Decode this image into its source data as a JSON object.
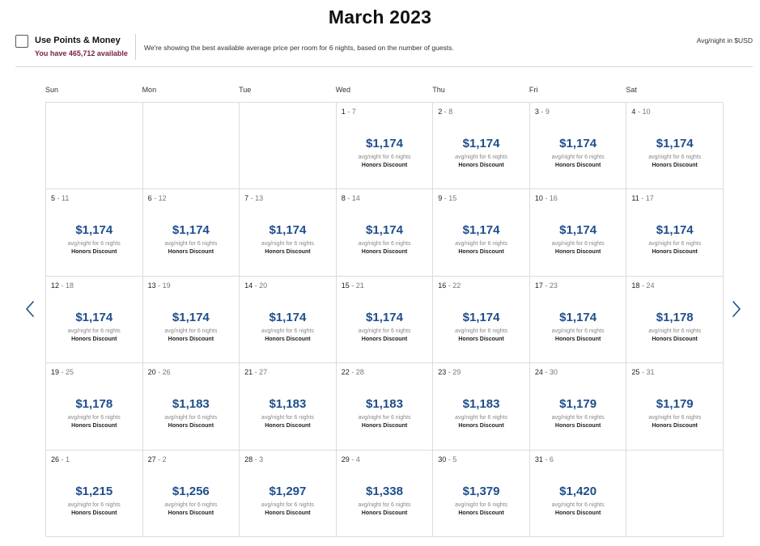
{
  "title": "March 2023",
  "points": {
    "label": "Use Points & Money",
    "available": "You have 465,712 available"
  },
  "info_text": "We're showing the best available average price per room for 6 nights, based on the number of guests.",
  "currency_note": "Avg/night in $USD",
  "days_of_week": [
    "Sun",
    "Mon",
    "Tue",
    "Wed",
    "Thu",
    "Fri",
    "Sat"
  ],
  "cells": [
    {
      "start": "",
      "sep": "",
      "end": "",
      "price": "",
      "sub": "",
      "discount": ""
    },
    {
      "start": "",
      "sep": "",
      "end": "",
      "price": "",
      "sub": "",
      "discount": ""
    },
    {
      "start": "",
      "sep": "",
      "end": "",
      "price": "",
      "sub": "",
      "discount": ""
    },
    {
      "start": "1",
      "sep": " - ",
      "end": "7",
      "price": "$1,174",
      "sub": "avg/night for 6 nights",
      "discount": "Honors Discount"
    },
    {
      "start": "2",
      "sep": " - ",
      "end": "8",
      "price": "$1,174",
      "sub": "avg/night for 6 nights",
      "discount": "Honors Discount"
    },
    {
      "start": "3",
      "sep": " - ",
      "end": "9",
      "price": "$1,174",
      "sub": "avg/night for 6 nights",
      "discount": "Honors Discount"
    },
    {
      "start": "4",
      "sep": " - ",
      "end": "10",
      "price": "$1,174",
      "sub": "avg/night for 6 nights",
      "discount": "Honors Discount"
    },
    {
      "start": "5",
      "sep": " - ",
      "end": "11",
      "price": "$1,174",
      "sub": "avg/night for 6 nights",
      "discount": "Honors Discount"
    },
    {
      "start": "6",
      "sep": " - ",
      "end": "12",
      "price": "$1,174",
      "sub": "avg/night for 6 nights",
      "discount": "Honors Discount"
    },
    {
      "start": "7",
      "sep": " - ",
      "end": "13",
      "price": "$1,174",
      "sub": "avg/night for 6 nights",
      "discount": "Honors Discount"
    },
    {
      "start": "8",
      "sep": " - ",
      "end": "14",
      "price": "$1,174",
      "sub": "avg/night for 6 nights",
      "discount": "Honors Discount"
    },
    {
      "start": "9",
      "sep": " - ",
      "end": "15",
      "price": "$1,174",
      "sub": "avg/night for 6 nights",
      "discount": "Honors Discount"
    },
    {
      "start": "10",
      "sep": " - ",
      "end": "16",
      "price": "$1,174",
      "sub": "avg/night for 6 nights",
      "discount": "Honors Discount"
    },
    {
      "start": "11",
      "sep": " - ",
      "end": "17",
      "price": "$1,174",
      "sub": "avg/night for 6 nights",
      "discount": "Honors Discount"
    },
    {
      "start": "12",
      "sep": " - ",
      "end": "18",
      "price": "$1,174",
      "sub": "avg/night for 6 nights",
      "discount": "Honors Discount"
    },
    {
      "start": "13",
      "sep": " - ",
      "end": "19",
      "price": "$1,174",
      "sub": "avg/night for 6 nights",
      "discount": "Honors Discount"
    },
    {
      "start": "14",
      "sep": " - ",
      "end": "20",
      "price": "$1,174",
      "sub": "avg/night for 6 nights",
      "discount": "Honors Discount"
    },
    {
      "start": "15",
      "sep": " - ",
      "end": "21",
      "price": "$1,174",
      "sub": "avg/night for 6 nights",
      "discount": "Honors Discount"
    },
    {
      "start": "16",
      "sep": " - ",
      "end": "22",
      "price": "$1,174",
      "sub": "avg/night for 6 nights",
      "discount": "Honors Discount"
    },
    {
      "start": "17",
      "sep": " - ",
      "end": "23",
      "price": "$1,174",
      "sub": "avg/night for 6 nights",
      "discount": "Honors Discount"
    },
    {
      "start": "18",
      "sep": " - ",
      "end": "24",
      "price": "$1,178",
      "sub": "avg/night for 6 nights",
      "discount": "Honors Discount"
    },
    {
      "start": "19",
      "sep": " - ",
      "end": "25",
      "price": "$1,178",
      "sub": "avg/night for 6 nights",
      "discount": "Honors Discount"
    },
    {
      "start": "20",
      "sep": " - ",
      "end": "26",
      "price": "$1,183",
      "sub": "avg/night for 6 nights",
      "discount": "Honors Discount"
    },
    {
      "start": "21",
      "sep": " - ",
      "end": "27",
      "price": "$1,183",
      "sub": "avg/night for 6 nights",
      "discount": "Honors Discount"
    },
    {
      "start": "22",
      "sep": " - ",
      "end": "28",
      "price": "$1,183",
      "sub": "avg/night for 6 nights",
      "discount": "Honors Discount"
    },
    {
      "start": "23",
      "sep": " - ",
      "end": "29",
      "price": "$1,183",
      "sub": "avg/night for 6 nights",
      "discount": "Honors Discount"
    },
    {
      "start": "24",
      "sep": " - ",
      "end": "30",
      "price": "$1,179",
      "sub": "avg/night for 6 nights",
      "discount": "Honors Discount"
    },
    {
      "start": "25",
      "sep": " - ",
      "end": "31",
      "price": "$1,179",
      "sub": "avg/night for 6 nights",
      "discount": "Honors Discount"
    },
    {
      "start": "26",
      "sep": " - ",
      "end": "1",
      "price": "$1,215",
      "sub": "avg/night for 6 nights",
      "discount": "Honors Discount"
    },
    {
      "start": "27",
      "sep": " - ",
      "end": "2",
      "price": "$1,256",
      "sub": "avg/night for 6 nights",
      "discount": "Honors Discount"
    },
    {
      "start": "28",
      "sep": " - ",
      "end": "3",
      "price": "$1,297",
      "sub": "avg/night for 6 nights",
      "discount": "Honors Discount"
    },
    {
      "start": "29",
      "sep": " - ",
      "end": "4",
      "price": "$1,338",
      "sub": "avg/night for 6 nights",
      "discount": "Honors Discount"
    },
    {
      "start": "30",
      "sep": " - ",
      "end": "5",
      "price": "$1,379",
      "sub": "avg/night for 6 nights",
      "discount": "Honors Discount"
    },
    {
      "start": "31",
      "sep": " - ",
      "end": "6",
      "price": "$1,420",
      "sub": "avg/night for 6 nights",
      "discount": "Honors Discount"
    },
    {
      "start": "",
      "sep": "",
      "end": "",
      "price": "",
      "sub": "",
      "discount": ""
    }
  ],
  "nav": {
    "prev_icon": "chevron-left-icon",
    "next_icon": "chevron-right-icon"
  },
  "colors": {
    "price": "#1f4e8c",
    "points_available": "#7a2048",
    "arrow": "#1f4e8c"
  }
}
